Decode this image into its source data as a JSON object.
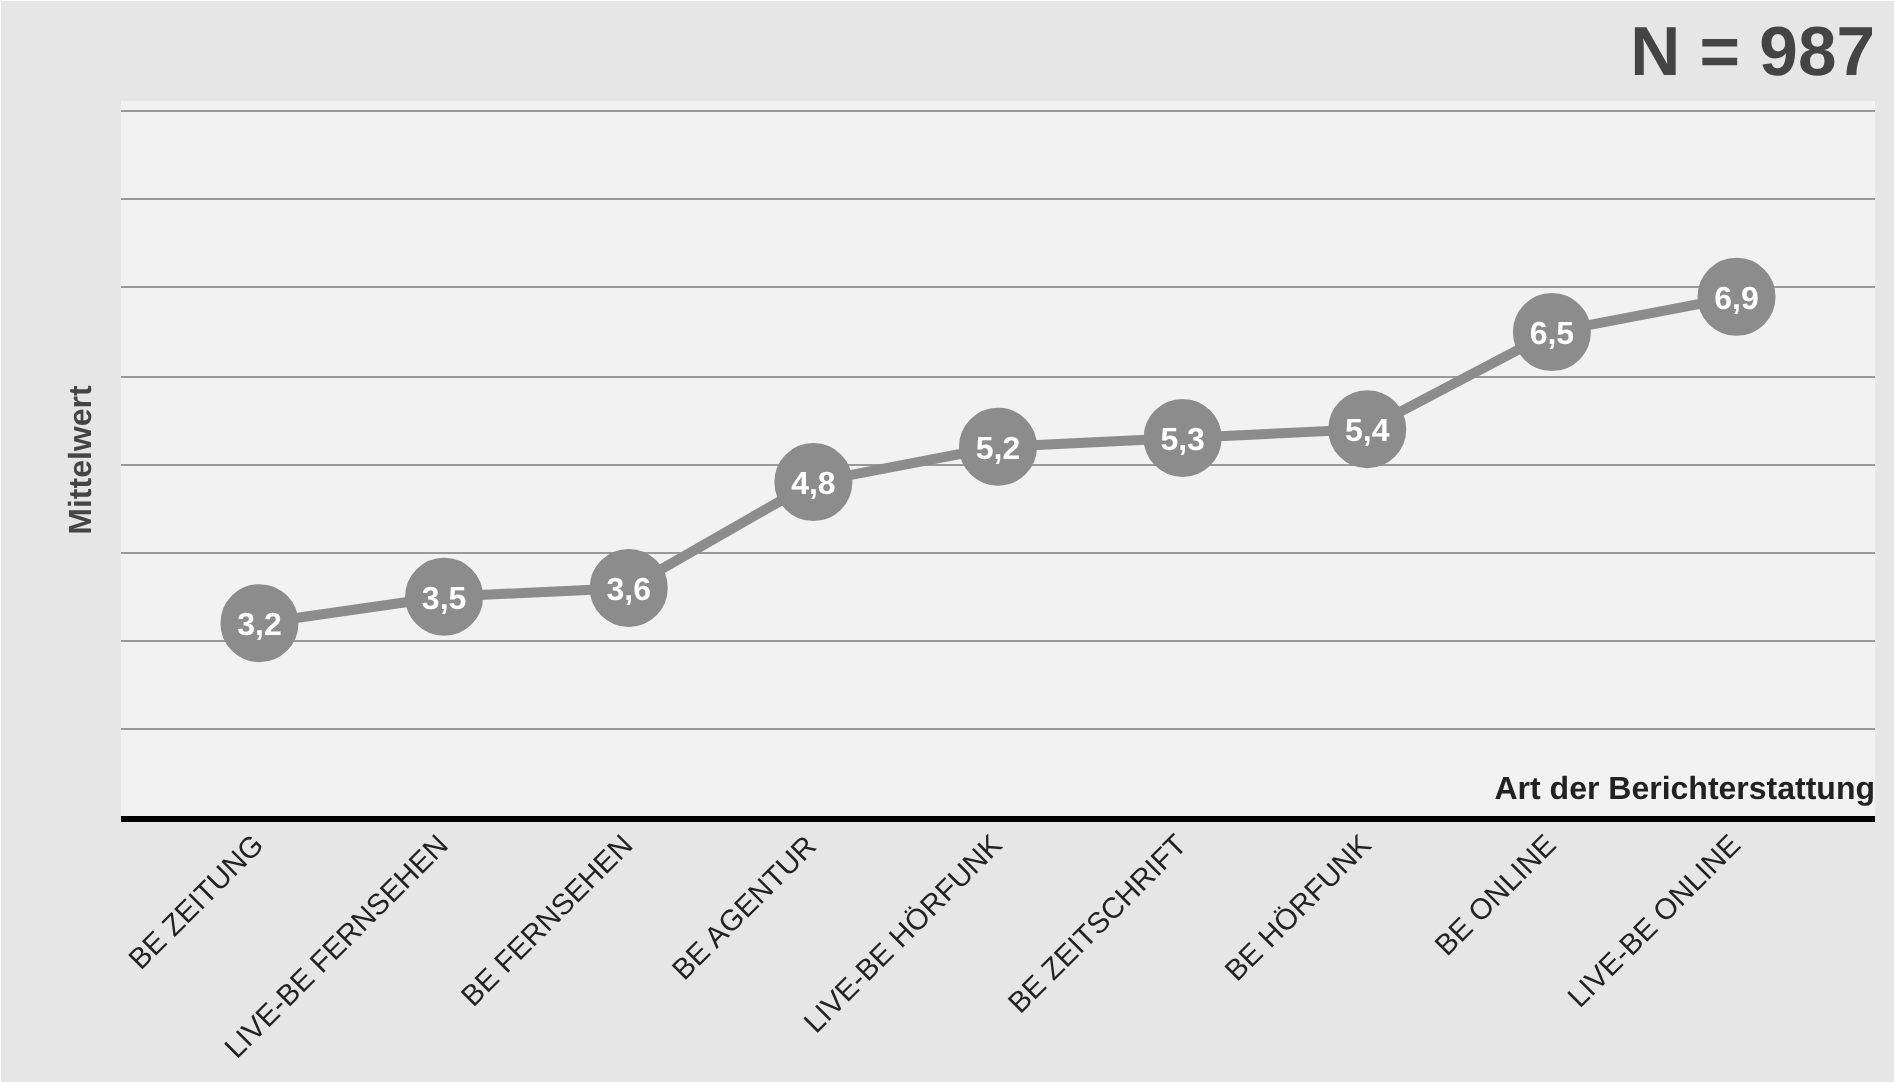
{
  "chart_data": {
    "type": "line",
    "title": "N = 987",
    "xlabel": "Art der Berichterstattung",
    "ylabel": "Mittelwert",
    "categories": [
      "BE ZEITUNG",
      "LIVE-BE FERNSEHEN",
      "BE FERNSEHEN",
      "BE AGENTUR",
      "LIVE-BE HÖRFUNK",
      "BE ZEITSCHRIFT",
      "BE HÖRFUNK",
      "BE ONLINE",
      "LIVE-BE ONLINE"
    ],
    "color": "#8c8c8c",
    "values": [
      3.2,
      3.5,
      3.6,
      4.8,
      5.2,
      5.3,
      5.4,
      6.5,
      6.9
    ],
    "value_labels": [
      "3,2",
      "3,5",
      "3,6",
      "4,8",
      "5,2",
      "5,3",
      "5,4",
      "6,5",
      "6,9"
    ],
    "grid": "y",
    "tick_labels": "x",
    "marker": "circle",
    "line_style": "solid"
  }
}
